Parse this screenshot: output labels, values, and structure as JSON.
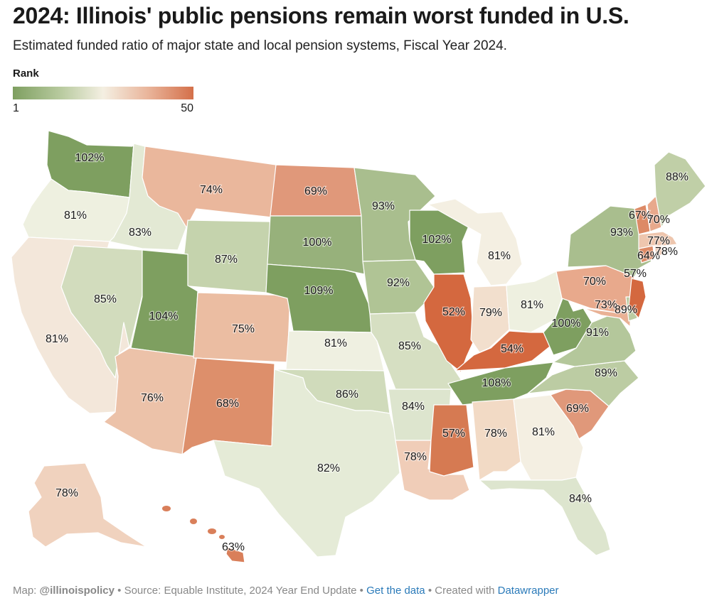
{
  "title": "2024: Illinois' public pensions remain worst funded in U.S.",
  "subtitle": "Estimated funded ratio of major state and local pension systems, Fiscal Year 2024.",
  "legend": {
    "title": "Rank",
    "min_label": "1",
    "max_label": "50",
    "colors": [
      "#7e9f60",
      "#b9cba0",
      "#f4efe2",
      "#e9b49a",
      "#d4704a"
    ]
  },
  "footer": {
    "map_prefix": "Map: ",
    "map_author": "@illinoispolicy",
    "source": " • Source: Equable Institute, 2024 Year End Update • ",
    "get_data": "Get the data",
    "created": " • Created with ",
    "tool": "Datawrapper"
  },
  "map_data": {
    "metric": "funded ratio",
    "states": [
      {
        "code": "WA",
        "value": "102%",
        "color": "#7e9f60"
      },
      {
        "code": "OR",
        "value": "81%",
        "color": "#eef0e0"
      },
      {
        "code": "CA",
        "value": "81%",
        "color": "#f3e7da"
      },
      {
        "code": "ID",
        "value": "83%",
        "color": "#e3e9d4"
      },
      {
        "code": "NV",
        "value": "85%",
        "color": "#d2dcbd"
      },
      {
        "code": "MT",
        "value": "74%",
        "color": "#eab79c"
      },
      {
        "code": "WY",
        "value": "87%",
        "color": "#c5d3ad"
      },
      {
        "code": "UT",
        "value": "104%",
        "color": "#7e9f60"
      },
      {
        "code": "AZ",
        "value": "76%",
        "color": "#ecc2a9"
      },
      {
        "code": "CO",
        "value": "75%",
        "color": "#ebbda2"
      },
      {
        "code": "NM",
        "value": "68%",
        "color": "#dd8f6b"
      },
      {
        "code": "ND",
        "value": "69%",
        "color": "#e0987a"
      },
      {
        "code": "SD",
        "value": "100%",
        "color": "#97b17b"
      },
      {
        "code": "NE",
        "value": "109%",
        "color": "#7e9f60"
      },
      {
        "code": "KS",
        "value": "81%",
        "color": "#eff0e1"
      },
      {
        "code": "OK",
        "value": "86%",
        "color": "#d0dbbb"
      },
      {
        "code": "TX",
        "value": "82%",
        "color": "#e5ebd7"
      },
      {
        "code": "MN",
        "value": "93%",
        "color": "#a9be8e"
      },
      {
        "code": "IA",
        "value": "92%",
        "color": "#b0c495"
      },
      {
        "code": "MO",
        "value": "85%",
        "color": "#d6dfc2"
      },
      {
        "code": "AR",
        "value": "84%",
        "color": "#dde5ce"
      },
      {
        "code": "LA",
        "value": "78%",
        "color": "#f0cdb8"
      },
      {
        "code": "WI",
        "value": "102%",
        "color": "#7e9f60"
      },
      {
        "code": "IL",
        "value": "52%",
        "color": "#d4683f"
      },
      {
        "code": "MI",
        "value": "81%",
        "color": "#f4efe2"
      },
      {
        "code": "IN",
        "value": "79%",
        "color": "#f2dfcd"
      },
      {
        "code": "OH",
        "value": "81%",
        "color": "#eef0e0"
      },
      {
        "code": "KY",
        "value": "54%",
        "color": "#d4683f"
      },
      {
        "code": "TN",
        "value": "108%",
        "color": "#7e9f60"
      },
      {
        "code": "MS",
        "value": "57%",
        "color": "#d67a52"
      },
      {
        "code": "AL",
        "value": "78%",
        "color": "#f2dac5"
      },
      {
        "code": "GA",
        "value": "81%",
        "color": "#f4efe2"
      },
      {
        "code": "FL",
        "value": "84%",
        "color": "#dde5ce"
      },
      {
        "code": "SC",
        "value": "69%",
        "color": "#e0987a"
      },
      {
        "code": "NC",
        "value": "89%",
        "color": "#bccca3"
      },
      {
        "code": "VA",
        "value": "91%",
        "color": "#b4c79b"
      },
      {
        "code": "WV",
        "value": "100%",
        "color": "#7e9f60"
      },
      {
        "code": "PA",
        "value": "70%",
        "color": "#e8a98c"
      },
      {
        "code": "NY",
        "value": "93%",
        "color": "#a9be8e"
      },
      {
        "code": "MD",
        "value": "73%",
        "color": "#e9b195"
      },
      {
        "code": "DE",
        "value": "89%",
        "color": "#bccca3"
      },
      {
        "code": "NJ",
        "value": "57%",
        "color": "#d4683f"
      },
      {
        "code": "CT",
        "value": "64%",
        "color": "#dd8a66"
      },
      {
        "code": "RI",
        "value": "78%",
        "color": "#f0cdb8"
      },
      {
        "code": "MA",
        "value": "77%",
        "color": "#eec6ae"
      },
      {
        "code": "VT",
        "value": "67%",
        "color": "#dd8a66"
      },
      {
        "code": "NH",
        "value": "70%",
        "color": "#e8a98c"
      },
      {
        "code": "ME",
        "value": "88%",
        "color": "#c0cfa7"
      },
      {
        "code": "AK",
        "value": "78%",
        "color": "#f0d2be"
      },
      {
        "code": "HI",
        "value": "63%",
        "color": "#d97f5a"
      }
    ]
  }
}
